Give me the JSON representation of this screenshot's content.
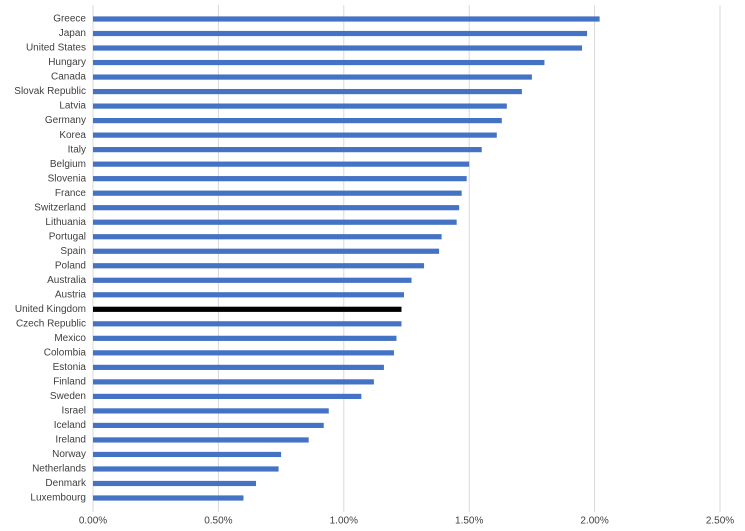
{
  "chart_data": {
    "type": "hbar",
    "categories": [
      "Greece",
      "Japan",
      "United States",
      "Hungary",
      "Canada",
      "Slovak Republic",
      "Latvia",
      "Germany",
      "Korea",
      "Italy",
      "Belgium",
      "Slovenia",
      "France",
      "Switzerland",
      "Lithuania",
      "Portugal",
      "Spain",
      "Poland",
      "Australia",
      "Austria",
      "United Kingdom",
      "Czech Republic",
      "Mexico",
      "Colombia",
      "Estonia",
      "Finland",
      "Sweden",
      "Israel",
      "Iceland",
      "Ireland",
      "Norway",
      "Netherlands",
      "Denmark",
      "Luxembourg"
    ],
    "values": [
      2.02,
      1.97,
      1.95,
      1.8,
      1.75,
      1.71,
      1.65,
      1.63,
      1.61,
      1.55,
      1.5,
      1.49,
      1.47,
      1.46,
      1.45,
      1.39,
      1.38,
      1.32,
      1.27,
      1.24,
      1.23,
      1.23,
      1.21,
      1.2,
      1.16,
      1.12,
      1.07,
      0.94,
      0.92,
      0.86,
      0.75,
      0.74,
      0.65,
      0.6
    ],
    "colors": [
      "#4472c4",
      "#4472c4",
      "#4472c4",
      "#4472c4",
      "#4472c4",
      "#4472c4",
      "#4472c4",
      "#4472c4",
      "#4472c4",
      "#4472c4",
      "#4472c4",
      "#4472c4",
      "#4472c4",
      "#4472c4",
      "#4472c4",
      "#4472c4",
      "#4472c4",
      "#4472c4",
      "#4472c4",
      "#4472c4",
      "#000000",
      "#4472c4",
      "#4472c4",
      "#4472c4",
      "#4472c4",
      "#4472c4",
      "#4472c4",
      "#4472c4",
      "#4472c4",
      "#4472c4",
      "#4472c4",
      "#4472c4",
      "#4472c4",
      "#4472c4"
    ],
    "xlim": [
      0,
      2.5
    ],
    "xticks": [
      {
        "value": 0,
        "label": "0.00%"
      },
      {
        "value": 0.5,
        "label": "0.50%"
      },
      {
        "value": 1,
        "label": "1.00%"
      },
      {
        "value": 1.5,
        "label": "1.50%"
      },
      {
        "value": 2,
        "label": "2.00%"
      },
      {
        "value": 2.5,
        "label": "2.50%"
      }
    ],
    "grid": true
  }
}
